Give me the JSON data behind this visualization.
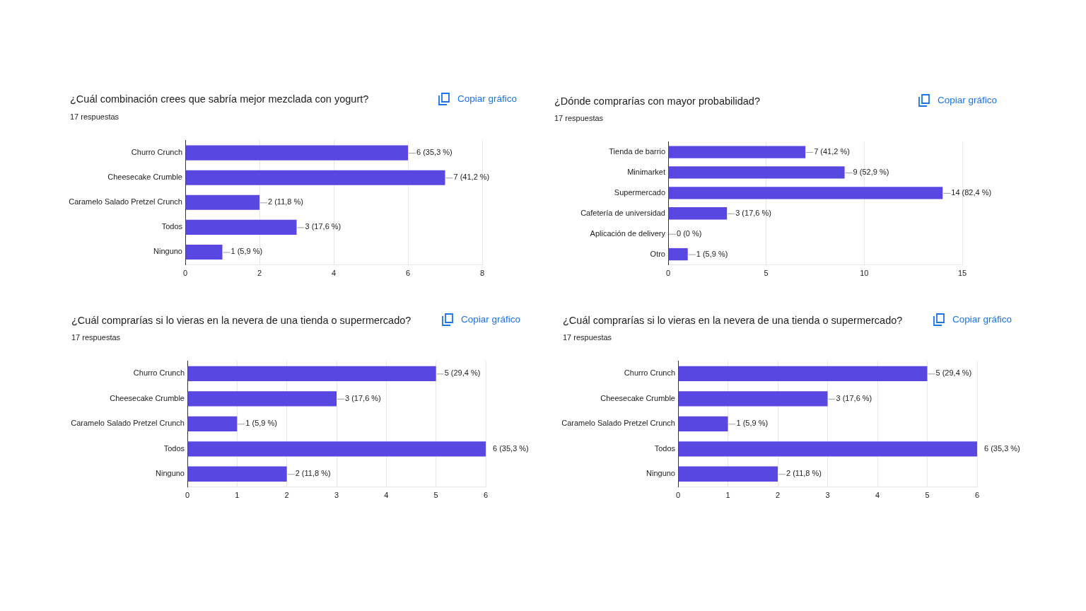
{
  "chart_data": [
    {
      "type": "bar",
      "orientation": "horizontal",
      "title": "¿Cuál combinación crees que sabría mejor mezclada con yogurt?",
      "subtitle": "17 respuestas",
      "annotations": [
        "Copiar gráfico"
      ],
      "categories": [
        "Churro Crunch",
        "Cheesecake Crumble",
        "Caramelo Salado Pretzel Crunch",
        "Todos",
        "Ninguno"
      ],
      "values": [
        6,
        7,
        2,
        3,
        1
      ],
      "value_labels": [
        "6 (35,3 %)",
        "7 (41,2 %)",
        "2 (11,8 %)",
        "3 (17,6 %)",
        "1 (5,9 %)"
      ],
      "color": "#5847e0",
      "xlim": [
        0,
        8
      ],
      "xticks": [
        0,
        2,
        4,
        6,
        8
      ],
      "grid": "x"
    },
    {
      "type": "bar",
      "orientation": "horizontal",
      "title": "¿Dónde comprarías con mayor probabilidad?",
      "subtitle": "17 respuestas",
      "annotations": [
        "Copiar gráfico"
      ],
      "categories": [
        "Tienda de barrio",
        "Minimarket",
        "Supermercado",
        "Cafetería de universidad",
        "Aplicación de delivery",
        "Otro"
      ],
      "values": [
        7,
        9,
        14,
        3,
        0,
        1
      ],
      "value_labels": [
        "7 (41,2 %)",
        "9 (52,9 %)",
        "14 (82,4 %)",
        "3 (17,6 %)",
        "0 (0 %)",
        "1 (5,9 %)"
      ],
      "color": "#5847e0",
      "xlim": [
        0,
        15
      ],
      "xticks": [
        0,
        5,
        10,
        15
      ],
      "grid": "x"
    },
    {
      "type": "bar",
      "orientation": "horizontal",
      "title": "¿Cuál comprarías si lo vieras en la nevera de una tienda o supermercado?",
      "subtitle": "17 respuestas",
      "annotations": [
        "Copiar gráfico"
      ],
      "categories": [
        "Churro Crunch",
        "Cheesecake Crumble",
        "Caramelo Salado Pretzel Crunch",
        "Todos",
        "Ninguno"
      ],
      "values": [
        5,
        3,
        1,
        6,
        2
      ],
      "value_labels": [
        "5 (29,4 %)",
        "3 (17,6 %)",
        "1 (5,9 %)",
        "6 (35,3 %)",
        "2 (11,8 %)"
      ],
      "color": "#5847e0",
      "xlim": [
        0,
        6
      ],
      "xticks": [
        0,
        1,
        2,
        3,
        4,
        5,
        6
      ],
      "grid": "x"
    },
    {
      "type": "bar",
      "orientation": "horizontal",
      "title": "¿Cuál comprarías si lo vieras en la nevera de una tienda o supermercado?",
      "subtitle": "17 respuestas",
      "annotations": [
        "Copiar gráfico"
      ],
      "categories": [
        "Churro Crunch",
        "Cheesecake Crumble",
        "Caramelo Salado Pretzel Crunch",
        "Todos",
        "Ninguno"
      ],
      "values": [
        5,
        3,
        1,
        6,
        2
      ],
      "value_labels": [
        "5 (29,4 %)",
        "3 (17,6 %)",
        "1 (5,9 %)",
        "6 (35,3 %)",
        "2 (11,8 %)"
      ],
      "color": "#5847e0",
      "xlim": [
        0,
        6
      ],
      "xticks": [
        0,
        1,
        2,
        3,
        4,
        5,
        6
      ],
      "grid": "x"
    }
  ]
}
